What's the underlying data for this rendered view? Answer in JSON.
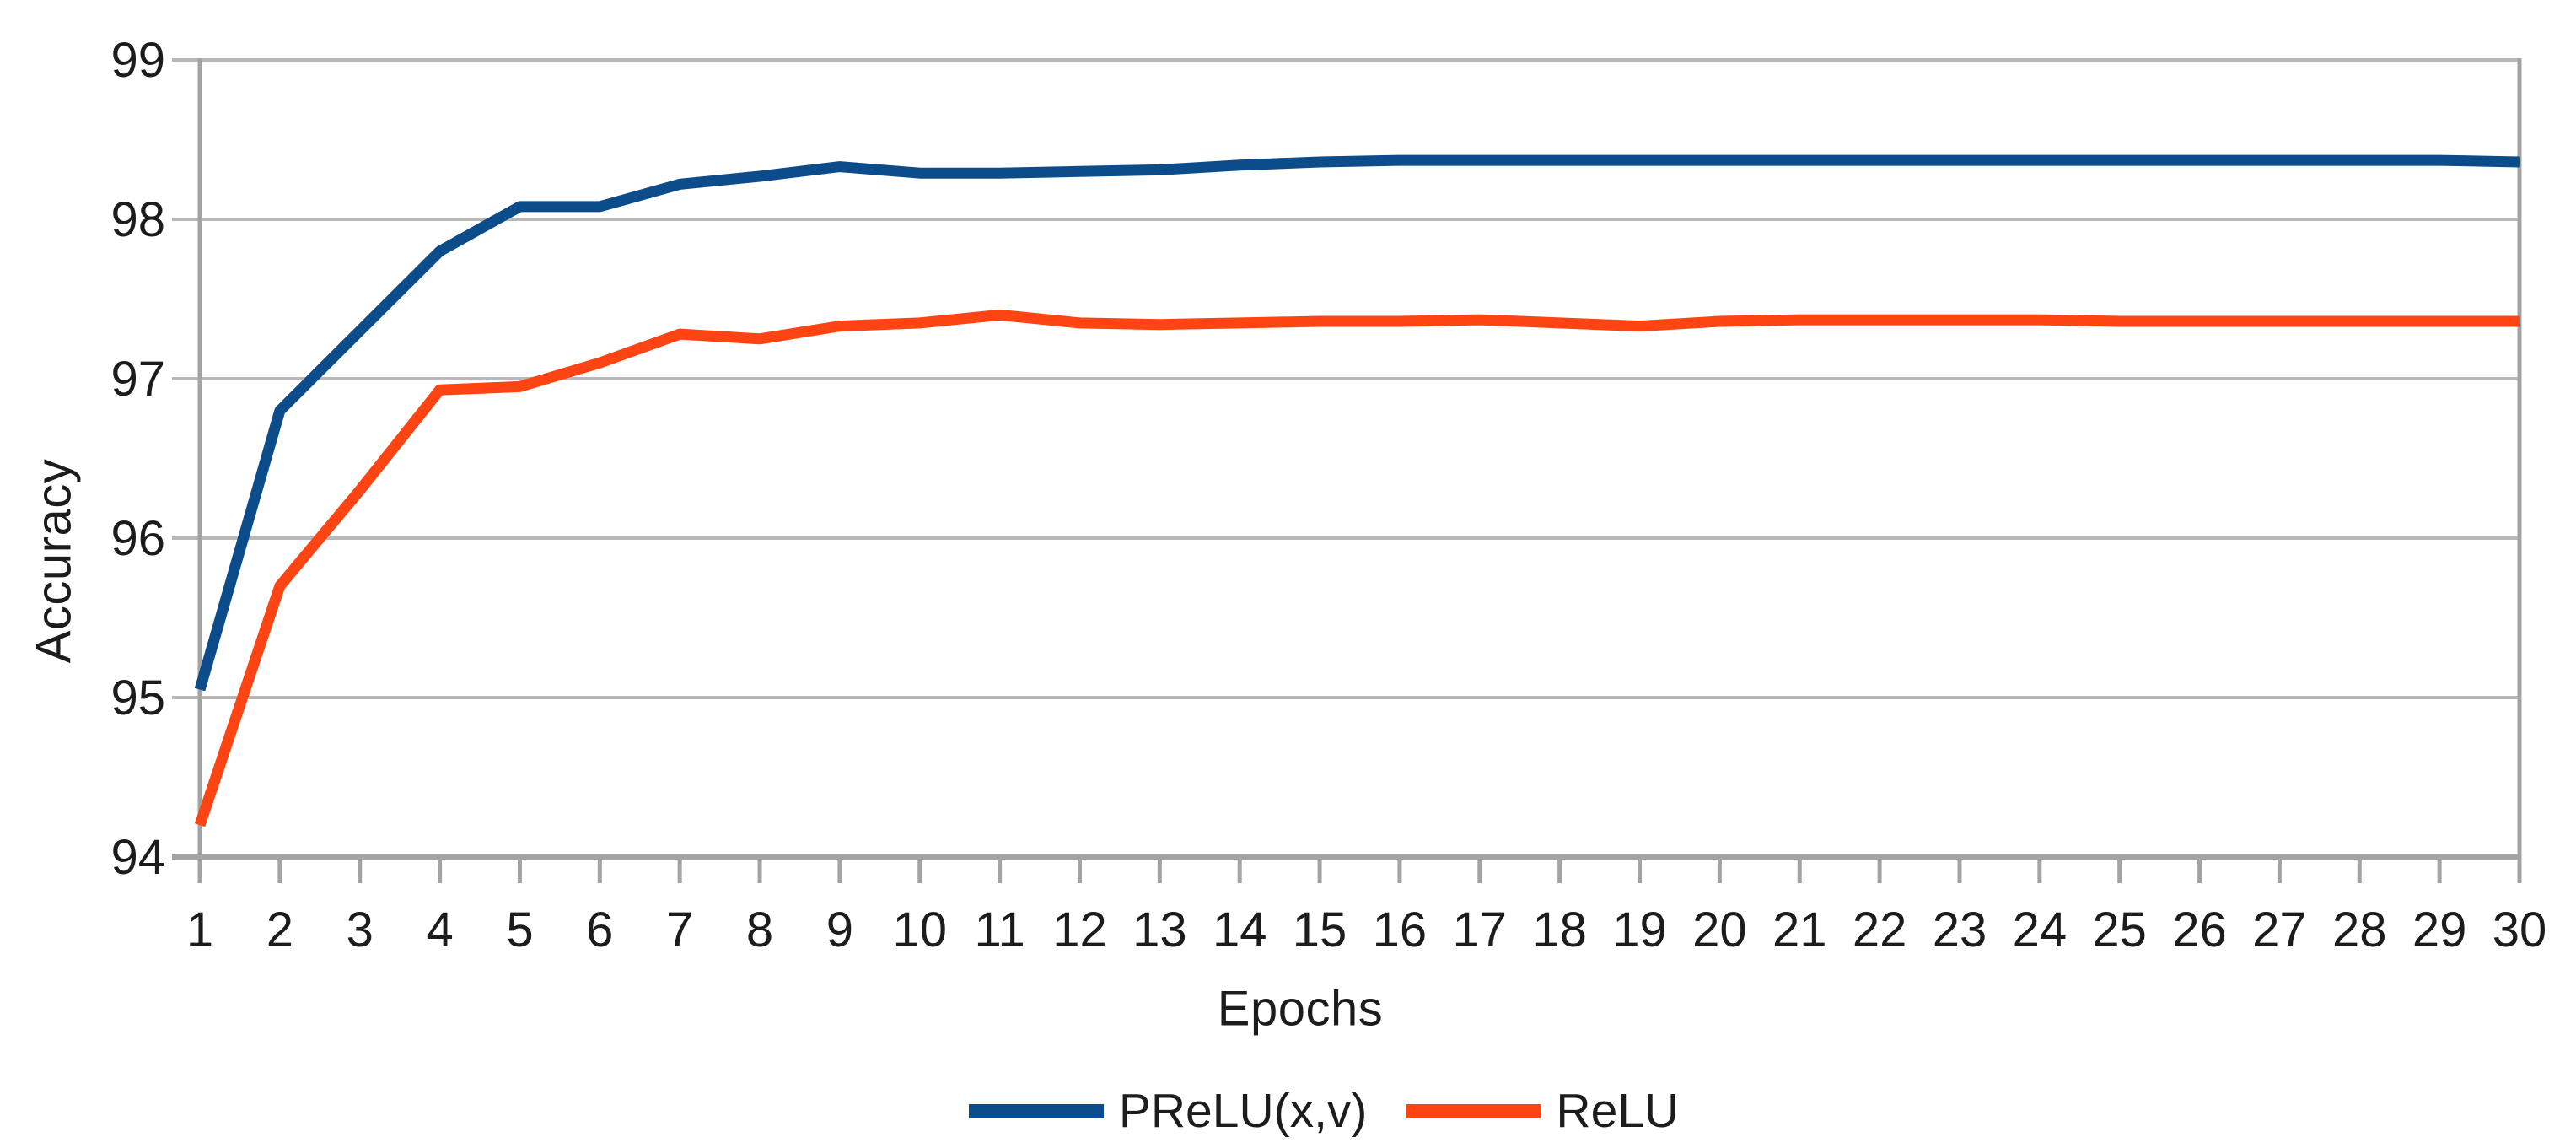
{
  "chart_data": {
    "type": "line",
    "x": [
      1,
      2,
      3,
      4,
      5,
      6,
      7,
      8,
      9,
      10,
      11,
      12,
      13,
      14,
      15,
      16,
      17,
      18,
      19,
      20,
      21,
      22,
      23,
      24,
      25,
      26,
      27,
      28,
      29,
      30
    ],
    "series": [
      {
        "name": "PReLU(x,v)",
        "color": "#0d4c8a",
        "values": [
          95.05,
          96.8,
          97.3,
          97.8,
          98.08,
          98.08,
          98.22,
          98.27,
          98.33,
          98.29,
          98.29,
          98.3,
          98.31,
          98.34,
          98.36,
          98.37,
          98.37,
          98.37,
          98.37,
          98.37,
          98.37,
          98.37,
          98.37,
          98.37,
          98.37,
          98.37,
          98.37,
          98.37,
          98.37,
          98.36
        ]
      },
      {
        "name": "ReLU",
        "color": "#ff4413",
        "values": [
          94.2,
          95.7,
          96.3,
          96.93,
          96.95,
          97.1,
          97.28,
          97.25,
          97.33,
          97.35,
          97.4,
          97.35,
          97.34,
          97.35,
          97.36,
          97.36,
          97.37,
          97.35,
          97.33,
          97.36,
          97.37,
          97.37,
          97.37,
          97.37,
          97.36,
          97.36,
          97.36,
          97.36,
          97.36,
          97.36
        ]
      }
    ],
    "title": "",
    "xlabel": "Epochs",
    "ylabel": "Accuracy",
    "ylim": [
      94,
      99
    ],
    "yticks": [
      94,
      95,
      96,
      97,
      98,
      99
    ],
    "xticks": [
      1,
      2,
      3,
      4,
      5,
      6,
      7,
      8,
      9,
      10,
      11,
      12,
      13,
      14,
      15,
      16,
      17,
      18,
      19,
      20,
      21,
      22,
      23,
      24,
      25,
      26,
      27,
      28,
      29,
      30
    ],
    "grid": "horizontal",
    "legend_position": "bottom-center",
    "line_width": 13,
    "colors": {
      "grid": "#b8b8b8",
      "axis": "#a3a3a3",
      "text": "#1c1c1c",
      "background": "#ffffff"
    }
  },
  "axis_titles": {
    "x": "Epochs",
    "y": "Accuracy"
  },
  "legend": {
    "items": [
      {
        "label": "PReLU(x,v)",
        "color": "#0d4c8a"
      },
      {
        "label": "ReLU",
        "color": "#ff4413"
      }
    ]
  }
}
